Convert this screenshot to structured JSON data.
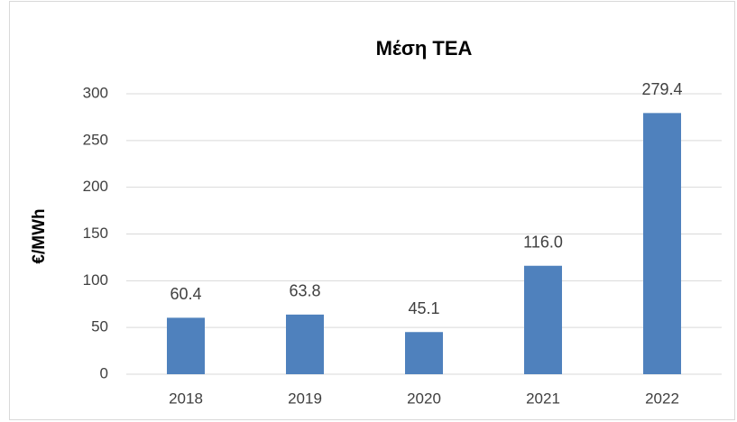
{
  "chart_data": {
    "type": "bar",
    "title": "Μέση ΤΕΑ",
    "y_label": "€/MWh",
    "categories": [
      "2018",
      "2019",
      "2020",
      "2021",
      "2022"
    ],
    "values": [
      60.4,
      63.8,
      45.1,
      116.0,
      279.4
    ],
    "value_labels": [
      "60.4",
      "63.8",
      "45.1",
      "116.0",
      "279.4"
    ],
    "color": "#4f81bd",
    "ylim": [
      0,
      300
    ],
    "yticks": [
      0,
      50,
      100,
      150,
      200,
      250,
      300
    ],
    "grid": true
  }
}
